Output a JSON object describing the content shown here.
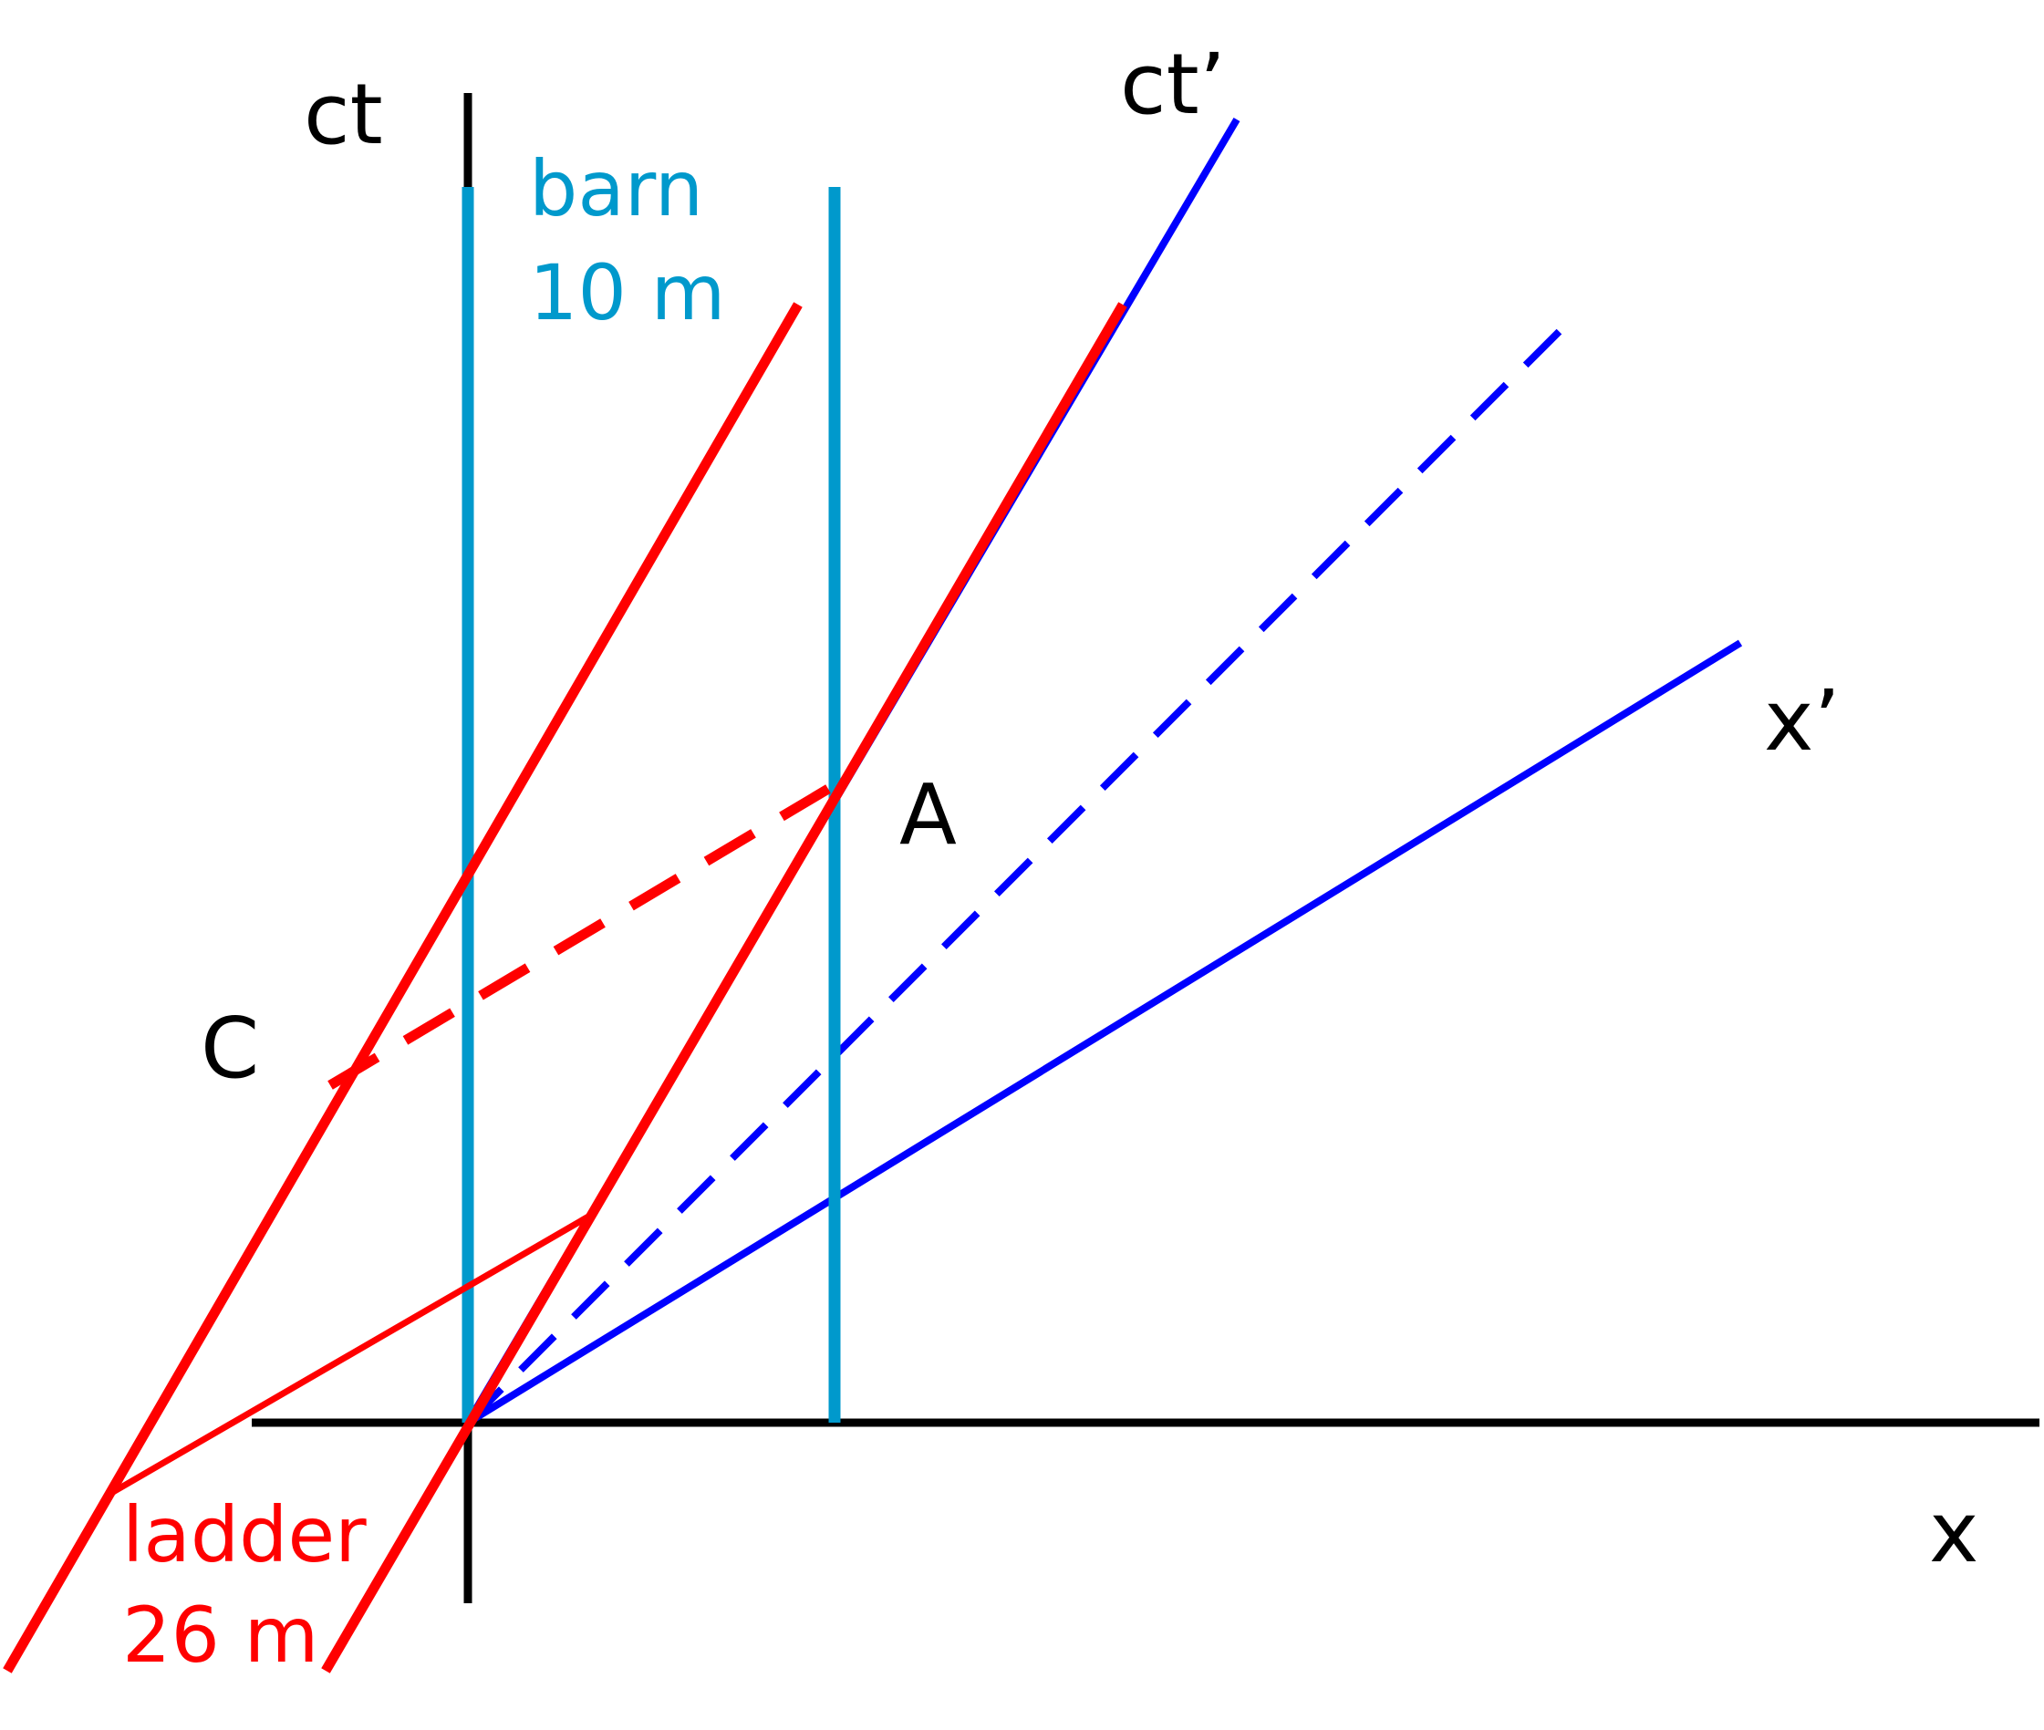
{
  "diagram": {
    "axes": {
      "ct": "ct",
      "x": "x",
      "ct_prime": "ct’",
      "x_prime": "x’"
    },
    "barn": {
      "name": "barn",
      "length": "10 m"
    },
    "ladder": {
      "name": "ladder",
      "length": "26 m"
    },
    "events": {
      "a": "A",
      "c": "C"
    },
    "colors": {
      "axis": "#000000",
      "barn": "#0099cc",
      "ladder": "#ff0000",
      "frame_prime": "#0000ff"
    }
  }
}
